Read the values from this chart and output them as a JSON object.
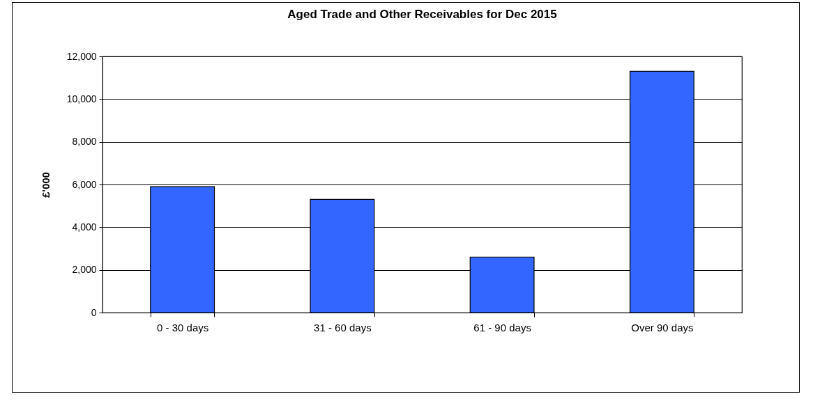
{
  "chart_data": {
    "type": "bar",
    "title": "Aged Trade and Other Receivables for Dec 2015",
    "ylabel": "£'000",
    "categories": [
      "0 - 30 days",
      "31 - 60 days",
      "61 - 90 days",
      "Over 90 days"
    ],
    "values": [
      5900,
      5300,
      2600,
      11300
    ],
    "color": "#3366ff",
    "ylim": [
      0,
      12000
    ],
    "yticks": [
      {
        "value": 0,
        "label": "0"
      },
      {
        "value": 2000,
        "label": "2,000"
      },
      {
        "value": 4000,
        "label": "4,000"
      },
      {
        "value": 6000,
        "label": "6,000"
      },
      {
        "value": 8000,
        "label": "8,000"
      },
      {
        "value": 10000,
        "label": "10,000"
      },
      {
        "value": 12000,
        "label": "12,000"
      }
    ],
    "grid": "y"
  }
}
